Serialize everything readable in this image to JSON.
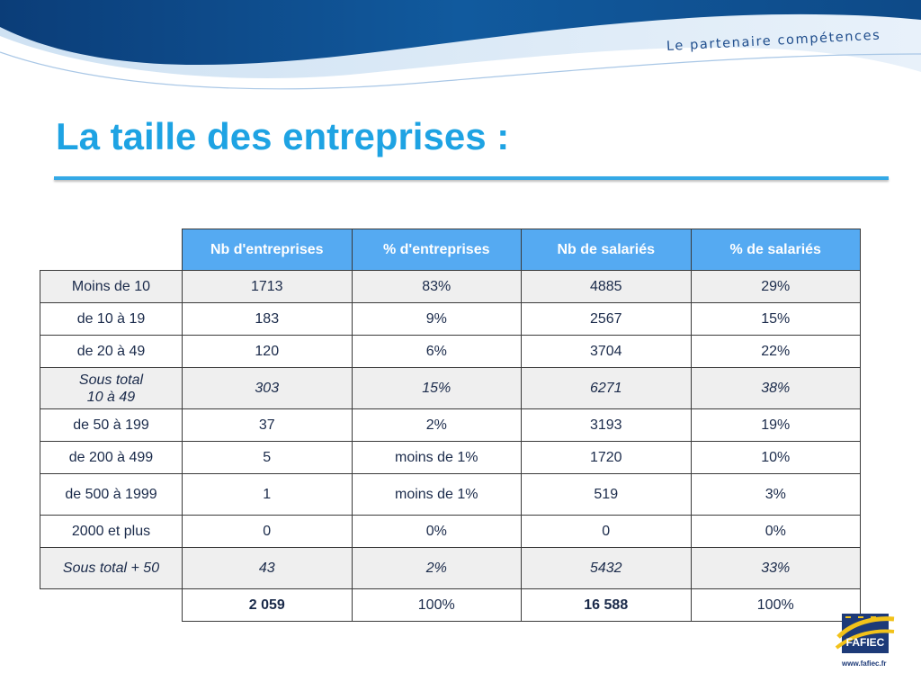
{
  "header": {
    "tagline": "Le partenaire compétences"
  },
  "page": {
    "title": "La taille des entreprises :"
  },
  "table": {
    "columns": [
      "Nb d'entreprises",
      "% d'entreprises",
      "Nb de salariés",
      "% de salariés"
    ],
    "rows": [
      {
        "label": [
          "Moins de 10"
        ],
        "values": [
          "1713",
          "83%",
          "4885",
          "29%"
        ]
      },
      {
        "label": [
          "de 10 à 19"
        ],
        "values": [
          "183",
          "9%",
          "2567",
          "15%"
        ]
      },
      {
        "label": [
          "de 20 à 49"
        ],
        "values": [
          "120",
          "6%",
          "3704",
          "22%"
        ]
      },
      {
        "label": [
          "Sous total",
          "10 à 49"
        ],
        "values": [
          "303",
          "15%",
          "6271",
          "38%"
        ]
      },
      {
        "label": [
          "de 50 à 199"
        ],
        "values": [
          "37",
          "2%",
          "3193",
          "19%"
        ]
      },
      {
        "label": [
          "de 200 à 499"
        ],
        "values": [
          "5",
          "moins de 1%",
          "1720",
          "10%"
        ]
      },
      {
        "label": [
          "de 500 à 1999"
        ],
        "values": [
          "1",
          "moins de 1%",
          "519",
          "3%"
        ]
      },
      {
        "label": [
          "2000 et plus"
        ],
        "values": [
          "0",
          "0%",
          "0",
          "0%"
        ]
      },
      {
        "label": [
          "Sous total + 50"
        ],
        "values": [
          "43",
          "2%",
          "5432",
          "33%"
        ]
      }
    ],
    "total": {
      "values": [
        "2 059",
        "100%",
        "16 588",
        "100%"
      ]
    }
  },
  "logo": {
    "text": "FAFIEC",
    "url": "www.fafiec.fr"
  },
  "colors": {
    "title": "#1ea3e3",
    "header_band": "#0d4f8f",
    "table_header": "#55aaf2",
    "shaded_row": "#efefef"
  }
}
